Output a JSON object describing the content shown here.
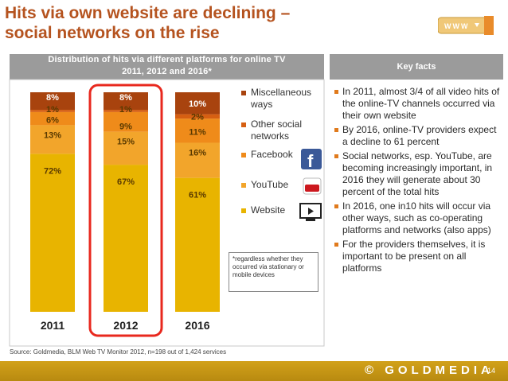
{
  "title_line1": "Hits via own website are declining –",
  "title_line2": "social networks on the rise",
  "logo_text": "WWW",
  "left_header_line1": "Distribution of hits via different platforms for online TV",
  "left_header_line2": "2011, 2012 and 2016*",
  "right_header": "Key facts",
  "colors": {
    "Website": "#e8b400",
    "YouTube": "#f2a52b",
    "Facebook": "#ef8b1a",
    "Other social networks": "#d65f12",
    "Miscellaneous ways": "#a8430e",
    "highlight": "#e8281e",
    "panel": "#9b9b9b"
  },
  "chart_data": {
    "type": "bar",
    "stacked": true,
    "categories": [
      "2011",
      "2012",
      "2016"
    ],
    "series": [
      {
        "name": "Website",
        "values": [
          72,
          67,
          61
        ]
      },
      {
        "name": "YouTube",
        "values": [
          13,
          15,
          16
        ]
      },
      {
        "name": "Facebook",
        "values": [
          6,
          9,
          11
        ]
      },
      {
        "name": "Other social networks",
        "values": [
          1,
          1,
          2
        ]
      },
      {
        "name": "Miscellaneous ways",
        "values": [
          8,
          8,
          10
        ]
      }
    ],
    "data_labels": [
      [
        "72%",
        "13%",
        "6%",
        "1%",
        "8%"
      ],
      [
        "67%",
        "15%",
        "9%",
        "1%",
        "8%"
      ],
      [
        "61%",
        "16%",
        "11%",
        "2%",
        "10%"
      ]
    ],
    "highlighted_category": "2012",
    "ylim": [
      0,
      100
    ],
    "legend_position": "right",
    "legend_items": [
      {
        "key": "Miscellaneous ways",
        "lines": [
          "Miscellaneous",
          "ways"
        ],
        "icon": ""
      },
      {
        "key": "Other social networks",
        "lines": [
          "Other social",
          "networks"
        ],
        "icon": ""
      },
      {
        "key": "Facebook",
        "lines": [
          "Facebook"
        ],
        "icon": "facebook-icon"
      },
      {
        "key": "YouTube",
        "lines": [
          "YouTube"
        ],
        "icon": "youtube-icon"
      },
      {
        "key": "Website",
        "lines": [
          "Website"
        ],
        "icon": "website-icon"
      }
    ]
  },
  "footnote": "*regardless whether they occurred via stationary or mobile devices",
  "key_facts": [
    "In 2011, almost 3/4 of all video hits of the online-TV channels occurred via their own website",
    "By 2016, online-TV providers expect a decline to 61 percent",
    "Social networks, esp. YouTube, are becoming increasingly important, in 2016 they will generate about 30 percent of the total hits",
    "In 2016, one in10 hits will occur via other ways, such as co-operating platforms and networks (also apps)",
    "For the providers themselves, it is important to be present on all platforms"
  ],
  "source": "Source: Goldmedia, BLM Web TV Monitor 2012, n=198 out of 1,424 services",
  "footer_brand": "© GOLDMEDIA",
  "page_number": "14"
}
